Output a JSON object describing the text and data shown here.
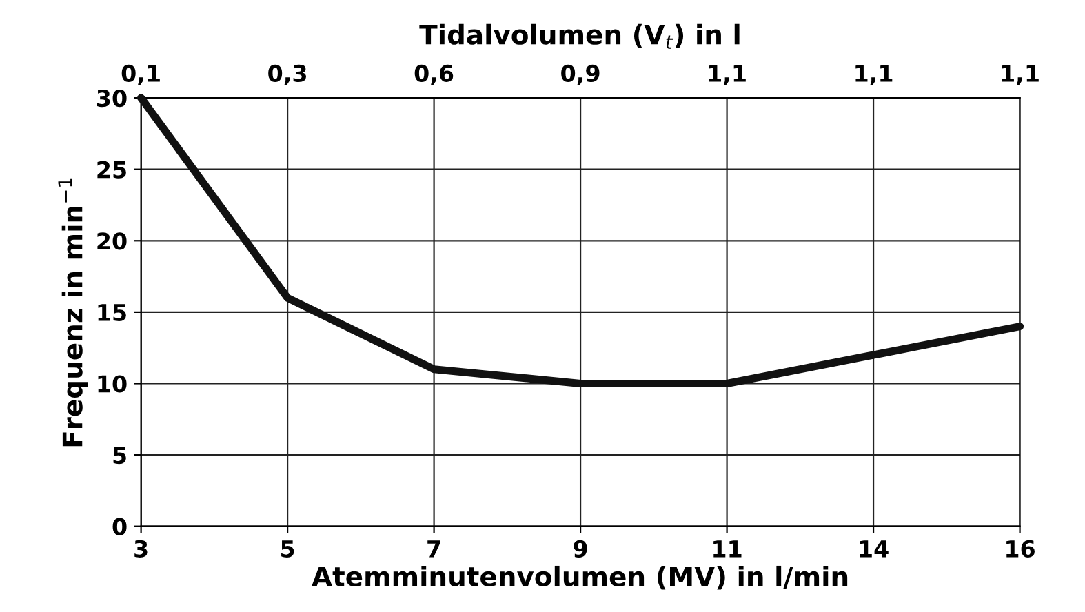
{
  "chart_data": {
    "type": "line",
    "xlabel": "Atemminutenvolumen (MV) in l/min",
    "ylabel": "Frequenz in min$^{−1}$",
    "x2label": "Tidalvolumen (V$_{t}$) in l",
    "categories": [
      "3",
      "5",
      "7",
      "9",
      "11",
      "14",
      "16"
    ],
    "series": [
      {
        "color": "#111111",
        "values": [
          30,
          16,
          11,
          10,
          10,
          12,
          14
        ]
      }
    ],
    "ylim": [
      0,
      30
    ],
    "yticks": [
      0,
      5,
      10,
      15,
      20,
      25,
      30
    ],
    "annotations": [
      "0,1",
      "0,3",
      "0,6",
      "0,9",
      "1,1",
      "1,1",
      "1,1"
    ],
    "grid": true,
    "marker": "none",
    "line_style": "solid"
  }
}
